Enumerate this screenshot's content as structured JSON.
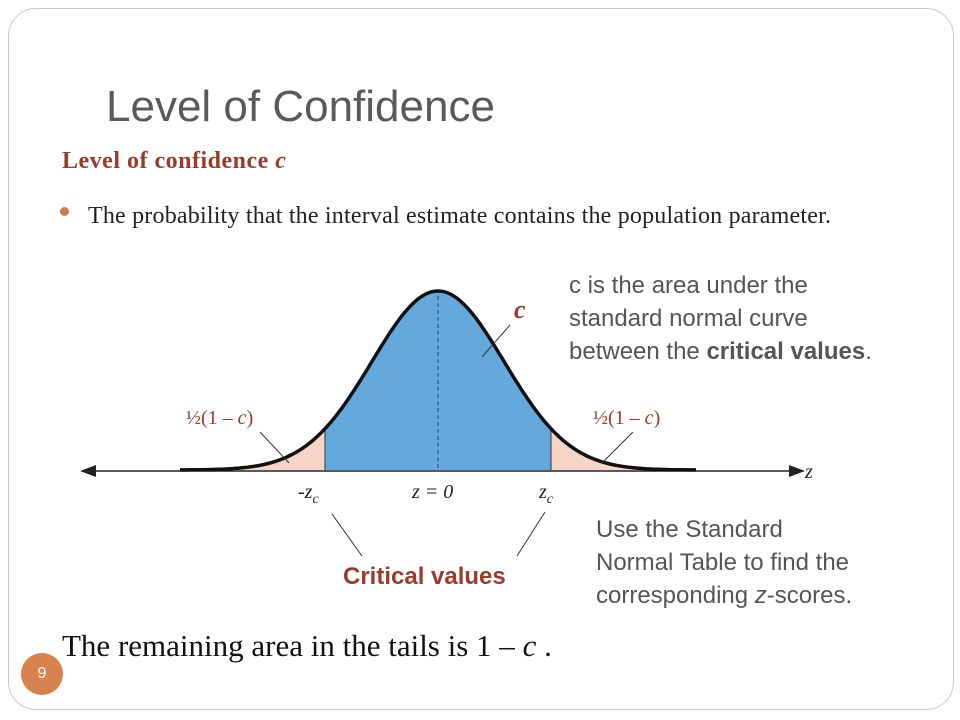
{
  "slide": {
    "title": "Level of Confidence",
    "subtitle_prefix": "Level of confidence ",
    "subtitle_var": "c",
    "bullet": "The probability that the interval estimate contains the population parameter.",
    "page_number": "9"
  },
  "diagram": {
    "area_label": "c",
    "left_tail_label": "½(1 – c)",
    "right_tail_label": "½(1 – c)",
    "neg_crit_label": "-zc",
    "center_label": "z = 0",
    "pos_crit_label": "zc",
    "axis_label": "z",
    "critical_values_label": "Critical values",
    "colors": {
      "center_fill": "#65a8dc",
      "tail_fill": "#f6d4c8",
      "accent_text": "#9b3b2a",
      "badge": "#d8824e"
    }
  },
  "notes": {
    "c_line1": "c is the area under the",
    "c_line2": "standard normal curve",
    "c_line3_prefix": "between the ",
    "c_line3_bold": "critical values",
    "c_line3_suffix": ".",
    "table_line1": "Use the Standard",
    "table_line2": "Normal Table to find the",
    "table_line3_prefix": "corresponding ",
    "table_line3_var": "z",
    "table_line3_suffix": "-scores."
  },
  "remaining": {
    "prefix": "The remaining area in the tails is 1 – ",
    "var": "c",
    "suffix": " ."
  }
}
